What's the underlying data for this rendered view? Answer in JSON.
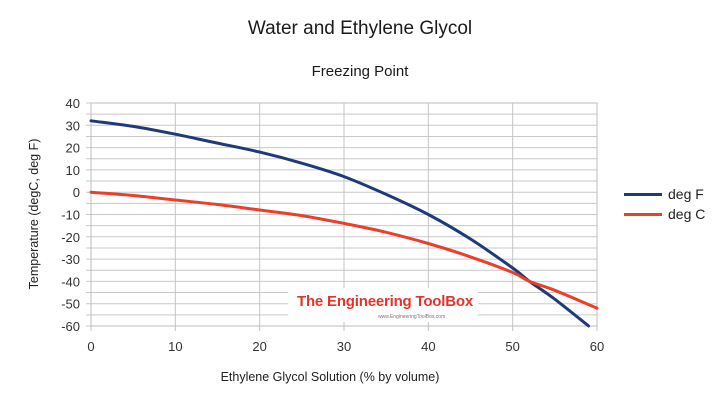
{
  "chart_data": {
    "type": "line",
    "title": "Water and Ethylene Glycol",
    "subtitle": "Freezing Point",
    "xlabel": "Ethylene Glycol Solution (% by volume)",
    "ylabel": "Temperature (degC, deg F)",
    "xlim": [
      0,
      60
    ],
    "ylim": [
      -60,
      40
    ],
    "xticks": [
      0,
      10,
      20,
      30,
      40,
      50,
      60
    ],
    "yticks": [
      40,
      30,
      20,
      10,
      0,
      -10,
      -20,
      -30,
      -40,
      -50,
      -60
    ],
    "grid": true,
    "legend_position": "right",
    "series": [
      {
        "name": "deg F",
        "color": "#1f3a78",
        "x": [
          0,
          5,
          10,
          15,
          20,
          25,
          30,
          35,
          40,
          45,
          50,
          52,
          55,
          59
        ],
        "values": [
          32,
          29.5,
          26,
          22,
          18,
          13,
          7,
          -1,
          -10,
          -21,
          -34,
          -40,
          -48,
          -60
        ]
      },
      {
        "name": "deg C",
        "color": "#e8402a",
        "x": [
          0,
          5,
          10,
          15,
          20,
          25,
          30,
          35,
          40,
          45,
          50,
          52,
          55,
          60
        ],
        "values": [
          0,
          -1.5,
          -3.5,
          -5.5,
          -8,
          -10.5,
          -14,
          -18,
          -23,
          -29,
          -36,
          -40,
          -44,
          -52
        ]
      }
    ],
    "annotations": [
      "The Engineering ToolBox",
      "www.EngineeringToolBox.com"
    ]
  },
  "legend": [
    {
      "label": "deg F",
      "color": "#1f3a78"
    },
    {
      "label": "deg C",
      "color": "#e8402a"
    }
  ],
  "watermark": {
    "title": "The Engineering ToolBox",
    "url": "www.EngineeringToolBox.com"
  }
}
